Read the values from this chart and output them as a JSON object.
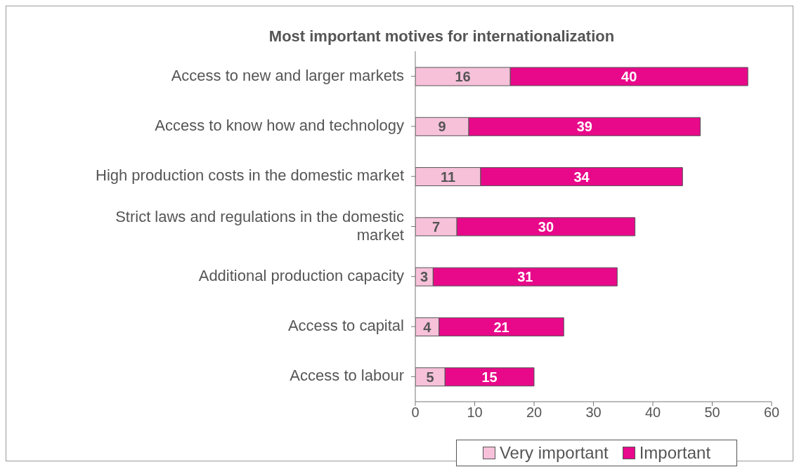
{
  "chart_data": {
    "type": "bar",
    "orientation": "horizontal",
    "stacked": true,
    "title": "Most important motives for internationalization",
    "categories": [
      "Access to new and larger markets",
      "Access to know how and technology",
      "High production costs in the domestic market",
      "Strict laws and regulations in the domestic market",
      "Additional production capacity",
      "Access to capital",
      "Access to labour"
    ],
    "series": [
      {
        "name": "Very important",
        "color": "#f7c1da",
        "values": [
          16,
          9,
          11,
          7,
          3,
          4,
          5
        ]
      },
      {
        "name": "Important",
        "color": "#e8098a",
        "values": [
          40,
          39,
          34,
          30,
          31,
          21,
          15
        ]
      }
    ],
    "xlim": [
      0,
      60
    ],
    "xticks": [
      0,
      10,
      20,
      30,
      40,
      50,
      60
    ],
    "grid": false,
    "legend": "bottom",
    "data_labels": true
  }
}
